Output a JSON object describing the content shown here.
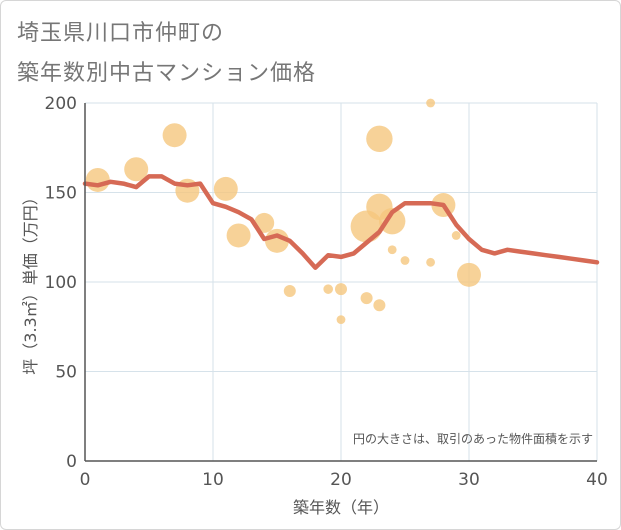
{
  "title_line1": "埼玉県川口市仲町の",
  "title_line2": "築年数別中古マンション価格",
  "chart_data": {
    "type": "scatter",
    "xlabel": "築年数（年）",
    "ylabel": "坪（3.3㎡）単価（万円）",
    "xlim": [
      0,
      40
    ],
    "ylim": [
      0,
      200
    ],
    "xticks": [
      "0",
      "10",
      "20",
      "30",
      "40"
    ],
    "yticks": [
      "0",
      "50",
      "100",
      "150",
      "200"
    ],
    "grid": true,
    "note": "円の大きさは、取引のあった物件面積を示す",
    "colors": {
      "bubble": "#f5c77e",
      "line": "#d66a55",
      "grid": "#d6e2ea",
      "axis": "#555555"
    },
    "bubbles": [
      {
        "x": 1,
        "y": 157,
        "size": 3
      },
      {
        "x": 4,
        "y": 163,
        "size": 3
      },
      {
        "x": 7,
        "y": 182,
        "size": 3
      },
      {
        "x": 8,
        "y": 151,
        "size": 3
      },
      {
        "x": 11,
        "y": 152,
        "size": 3
      },
      {
        "x": 12,
        "y": 126,
        "size": 3
      },
      {
        "x": 14,
        "y": 133,
        "size": 2.5
      },
      {
        "x": 15,
        "y": 123,
        "size": 3
      },
      {
        "x": 16,
        "y": 95,
        "size": 1.5
      },
      {
        "x": 19,
        "y": 96,
        "size": 1.2
      },
      {
        "x": 20,
        "y": 96,
        "size": 1.5
      },
      {
        "x": 20,
        "y": 79,
        "size": 1.1
      },
      {
        "x": 22,
        "y": 131,
        "size": 4
      },
      {
        "x": 22,
        "y": 91,
        "size": 1.5
      },
      {
        "x": 23,
        "y": 180,
        "size": 3.3
      },
      {
        "x": 23,
        "y": 142,
        "size": 3.3
      },
      {
        "x": 23,
        "y": 87,
        "size": 1.5
      },
      {
        "x": 24,
        "y": 134,
        "size": 3.3
      },
      {
        "x": 24,
        "y": 118,
        "size": 1.1
      },
      {
        "x": 25,
        "y": 112,
        "size": 1.1
      },
      {
        "x": 27,
        "y": 200,
        "size": 1.1
      },
      {
        "x": 27,
        "y": 111,
        "size": 1.1
      },
      {
        "x": 28,
        "y": 143,
        "size": 3
      },
      {
        "x": 29,
        "y": 126,
        "size": 1.1
      },
      {
        "x": 30,
        "y": 104,
        "size": 3
      }
    ],
    "trend": {
      "x": [
        0,
        1,
        2,
        3,
        4,
        5,
        6,
        7,
        8,
        9,
        10,
        11,
        12,
        13,
        14,
        15,
        16,
        17,
        18,
        19,
        20,
        21,
        22,
        23,
        24,
        25,
        26,
        27,
        28,
        29,
        30,
        31,
        32,
        33,
        34,
        35,
        36,
        37,
        38,
        39,
        40
      ],
      "y": [
        155,
        154,
        156,
        155,
        153,
        159,
        159,
        155,
        154,
        155,
        144,
        142,
        139,
        135,
        124,
        126,
        123,
        116,
        108,
        115,
        114,
        116,
        122,
        128,
        139,
        144,
        144,
        144,
        143,
        132,
        124,
        118,
        116,
        118,
        117,
        116,
        115,
        114,
        113,
        112,
        111
      ]
    }
  }
}
